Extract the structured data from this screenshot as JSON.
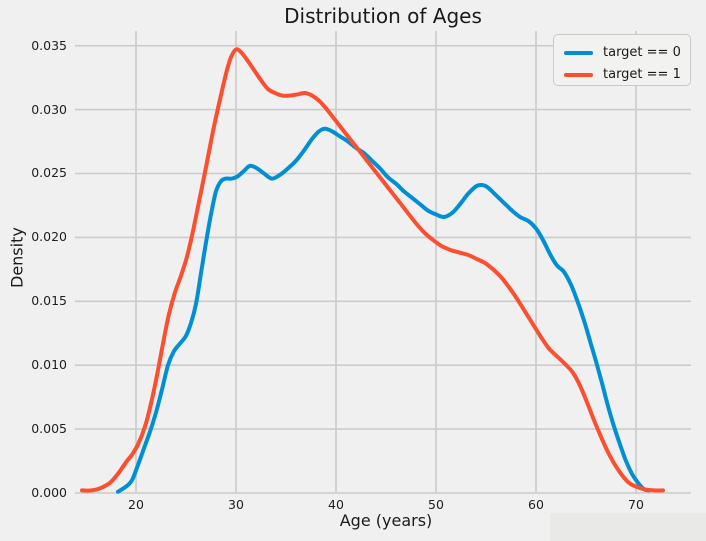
{
  "figure": {
    "background_color": "#f0f0f0",
    "grid_color": "#cbcbcb",
    "text_color": "#1a1a1a",
    "legend_face_color": "#f2f2f1",
    "legend_border_color": "#c9c9c9",
    "watermark_color": "#e9e9e8"
  },
  "chart_data": {
    "type": "line",
    "title": "Distribution of Ages",
    "xlabel": "Age (years)",
    "ylabel": "Density",
    "xlim": [
      13.9,
      75.5
    ],
    "ylim": [
      0,
      0.03615
    ],
    "grid": true,
    "legend_position": "upper right",
    "xticks": [
      20,
      30,
      40,
      50,
      60,
      70
    ],
    "xtick_labels": [
      "20",
      "30",
      "40",
      "50",
      "60",
      "70"
    ],
    "yticks": [
      0,
      0.005,
      0.01,
      0.015,
      0.02,
      0.025,
      0.03,
      0.035
    ],
    "ytick_labels": [
      "0.000",
      "0.005",
      "0.010",
      "0.015",
      "0.020",
      "0.025",
      "0.030",
      "0.035"
    ],
    "series": [
      {
        "name": "target == 0",
        "color": "#008fd5",
        "line_width": 4,
        "points": [
          [
            18.2,
            0.0001
          ],
          [
            19.0,
            0.0005
          ],
          [
            19.6,
            0.001
          ],
          [
            20.2,
            0.0022
          ],
          [
            20.8,
            0.0035
          ],
          [
            21.4,
            0.0048
          ],
          [
            22.0,
            0.0063
          ],
          [
            22.6,
            0.0081
          ],
          [
            23.2,
            0.01
          ],
          [
            23.8,
            0.0111
          ],
          [
            24.4,
            0.0117
          ],
          [
            25.0,
            0.0123
          ],
          [
            25.5,
            0.0133
          ],
          [
            26.0,
            0.0148
          ],
          [
            26.5,
            0.0172
          ],
          [
            27.0,
            0.0196
          ],
          [
            27.5,
            0.0218
          ],
          [
            28.0,
            0.0236
          ],
          [
            28.5,
            0.0244
          ],
          [
            29.0,
            0.0246
          ],
          [
            29.6,
            0.0246
          ],
          [
            30.2,
            0.0248
          ],
          [
            30.8,
            0.0252
          ],
          [
            31.4,
            0.0256
          ],
          [
            32.1,
            0.0254
          ],
          [
            32.8,
            0.025
          ],
          [
            33.6,
            0.0246
          ],
          [
            34.4,
            0.0249
          ],
          [
            35.2,
            0.0254
          ],
          [
            36.0,
            0.026
          ],
          [
            36.8,
            0.0268
          ],
          [
            37.6,
            0.0277
          ],
          [
            38.3,
            0.0283
          ],
          [
            38.9,
            0.0285
          ],
          [
            39.6,
            0.0283
          ],
          [
            40.4,
            0.0279
          ],
          [
            41.2,
            0.0275
          ],
          [
            42.0,
            0.027
          ],
          [
            42.8,
            0.0266
          ],
          [
            43.6,
            0.026
          ],
          [
            44.4,
            0.0254
          ],
          [
            45.2,
            0.0247
          ],
          [
            46.0,
            0.0242
          ],
          [
            46.8,
            0.0236
          ],
          [
            47.6,
            0.0231
          ],
          [
            48.4,
            0.0226
          ],
          [
            49.2,
            0.0221
          ],
          [
            50.0,
            0.0218
          ],
          [
            50.8,
            0.0216
          ],
          [
            51.6,
            0.0219
          ],
          [
            52.4,
            0.0226
          ],
          [
            53.2,
            0.0234
          ],
          [
            54.0,
            0.024
          ],
          [
            54.6,
            0.0241
          ],
          [
            55.2,
            0.0239
          ],
          [
            56.0,
            0.0233
          ],
          [
            56.8,
            0.0227
          ],
          [
            57.6,
            0.0221
          ],
          [
            58.4,
            0.0216
          ],
          [
            59.2,
            0.0213
          ],
          [
            60.0,
            0.0207
          ],
          [
            60.7,
            0.0198
          ],
          [
            61.4,
            0.0187
          ],
          [
            62.1,
            0.0178
          ],
          [
            62.8,
            0.0173
          ],
          [
            63.5,
            0.0163
          ],
          [
            64.1,
            0.0151
          ],
          [
            64.8,
            0.0135
          ],
          [
            65.4,
            0.0119
          ],
          [
            66.0,
            0.0103
          ],
          [
            66.6,
            0.0086
          ],
          [
            67.2,
            0.0068
          ],
          [
            67.8,
            0.0052
          ],
          [
            68.4,
            0.0038
          ],
          [
            69.0,
            0.0025
          ],
          [
            69.6,
            0.0015
          ],
          [
            70.2,
            0.0008
          ],
          [
            70.8,
            0.0003
          ],
          [
            71.3,
            0.0002
          ]
        ]
      },
      {
        "name": "target == 1",
        "color": "#fc4f30",
        "line_width": 4,
        "points": [
          [
            14.6,
            0.0002
          ],
          [
            15.6,
            0.0002
          ],
          [
            16.5,
            0.0004
          ],
          [
            17.4,
            0.0008
          ],
          [
            18.2,
            0.0015
          ],
          [
            19.0,
            0.0024
          ],
          [
            19.6,
            0.003
          ],
          [
            20.2,
            0.0038
          ],
          [
            20.9,
            0.0052
          ],
          [
            21.5,
            0.007
          ],
          [
            22.1,
            0.0092
          ],
          [
            22.7,
            0.0117
          ],
          [
            23.3,
            0.014
          ],
          [
            23.9,
            0.0157
          ],
          [
            24.5,
            0.017
          ],
          [
            25.1,
            0.0185
          ],
          [
            25.7,
            0.0205
          ],
          [
            26.3,
            0.0228
          ],
          [
            27.0,
            0.0255
          ],
          [
            27.7,
            0.0283
          ],
          [
            28.4,
            0.0308
          ],
          [
            29.0,
            0.0328
          ],
          [
            29.5,
            0.0341
          ],
          [
            30.0,
            0.0347
          ],
          [
            30.5,
            0.0345
          ],
          [
            31.1,
            0.0339
          ],
          [
            31.8,
            0.0331
          ],
          [
            32.5,
            0.0323
          ],
          [
            33.2,
            0.0316
          ],
          [
            33.9,
            0.0313
          ],
          [
            34.6,
            0.0311
          ],
          [
            35.4,
            0.0311
          ],
          [
            36.2,
            0.0312
          ],
          [
            36.9,
            0.0313
          ],
          [
            37.6,
            0.0311
          ],
          [
            38.3,
            0.0307
          ],
          [
            39.0,
            0.0301
          ],
          [
            39.8,
            0.0293
          ],
          [
            40.6,
            0.0285
          ],
          [
            41.4,
            0.0277
          ],
          [
            42.2,
            0.0269
          ],
          [
            43.0,
            0.0261
          ],
          [
            43.8,
            0.0253
          ],
          [
            44.6,
            0.0245
          ],
          [
            45.4,
            0.0237
          ],
          [
            46.2,
            0.0229
          ],
          [
            47.0,
            0.0221
          ],
          [
            47.9,
            0.0212
          ],
          [
            48.8,
            0.0204
          ],
          [
            49.7,
            0.0198
          ],
          [
            50.6,
            0.0193
          ],
          [
            51.5,
            0.019
          ],
          [
            52.4,
            0.0188
          ],
          [
            53.3,
            0.0186
          ],
          [
            54.1,
            0.0183
          ],
          [
            54.9,
            0.018
          ],
          [
            55.7,
            0.0175
          ],
          [
            56.5,
            0.0169
          ],
          [
            57.3,
            0.0161
          ],
          [
            58.1,
            0.0152
          ],
          [
            58.9,
            0.0142
          ],
          [
            59.7,
            0.0132
          ],
          [
            60.5,
            0.0122
          ],
          [
            61.3,
            0.0113
          ],
          [
            62.1,
            0.0107
          ],
          [
            62.9,
            0.0101
          ],
          [
            63.7,
            0.0094
          ],
          [
            64.4,
            0.0084
          ],
          [
            65.1,
            0.0071
          ],
          [
            65.8,
            0.0057
          ],
          [
            66.5,
            0.0044
          ],
          [
            67.2,
            0.0032
          ],
          [
            67.9,
            0.0022
          ],
          [
            68.6,
            0.0014
          ],
          [
            69.3,
            0.0008
          ],
          [
            70.0,
            0.0005
          ],
          [
            70.8,
            0.0003
          ],
          [
            71.8,
            0.0002
          ],
          [
            72.7,
            0.0002
          ]
        ]
      }
    ]
  },
  "legend": {
    "entries": [
      {
        "label": "target == 0"
      },
      {
        "label": "target == 1"
      }
    ]
  }
}
